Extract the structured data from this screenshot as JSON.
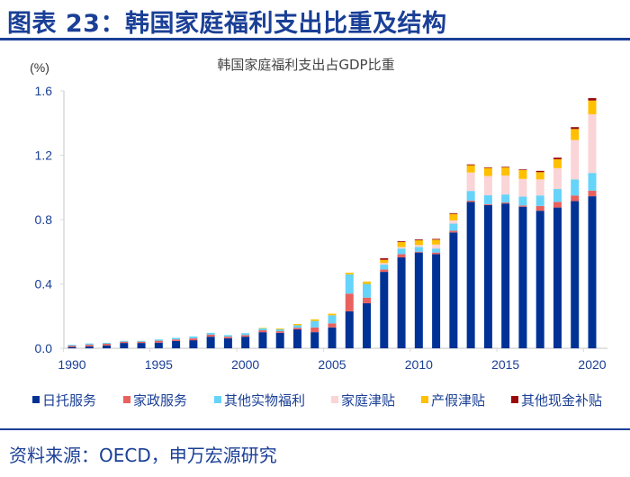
{
  "figure": {
    "title": "图表 23：韩国家庭福利支出比重及结构",
    "source": "资料来源：OECD，申万宏源研究"
  },
  "chart_data": {
    "type": "bar",
    "stacked": true,
    "title": "韩国家庭福利支出占GDP比重",
    "unit_label": "(%)",
    "xlabel": "",
    "ylabel": "(%)",
    "ylim": [
      0,
      1.6
    ],
    "yticks": [
      0.0,
      0.4,
      0.8,
      1.2,
      1.6
    ],
    "ytick_labels": [
      "0.0",
      "0.4",
      "0.8",
      "1.2",
      "1.6"
    ],
    "xtick_labels": [
      "1990",
      "1995",
      "2000",
      "2005",
      "2010",
      "2015",
      "2020"
    ],
    "grid": false,
    "legend_position": "bottom",
    "categories": [
      1990,
      1991,
      1992,
      1993,
      1994,
      1995,
      1996,
      1997,
      1998,
      1999,
      2000,
      2001,
      2002,
      2003,
      2004,
      2005,
      2006,
      2007,
      2008,
      2009,
      2010,
      2011,
      2012,
      2013,
      2014,
      2015,
      2016,
      2017,
      2018,
      2019,
      2020
    ],
    "series": [
      {
        "name": "日托服务",
        "color": "#003296",
        "values": [
          0.008,
          0.012,
          0.018,
          0.033,
          0.033,
          0.035,
          0.045,
          0.05,
          0.072,
          0.062,
          0.072,
          0.1,
          0.096,
          0.118,
          0.1,
          0.13,
          0.23,
          0.28,
          0.475,
          0.565,
          0.595,
          0.585,
          0.72,
          0.91,
          0.89,
          0.9,
          0.88,
          0.855,
          0.875,
          0.915,
          0.945
        ]
      },
      {
        "name": "家政服务",
        "color": "#e8615f",
        "values": [
          0.008,
          0.01,
          0.01,
          0.008,
          0.008,
          0.012,
          0.01,
          0.012,
          0.012,
          0.01,
          0.01,
          0.012,
          0.01,
          0.01,
          0.03,
          0.025,
          0.11,
          0.035,
          0.015,
          0.02,
          0.005,
          0.01,
          0.01,
          0.008,
          0.006,
          0.006,
          0.008,
          0.03,
          0.035,
          0.035,
          0.035
        ]
      },
      {
        "name": "其他实物福利",
        "color": "#66d3fa",
        "values": [
          0.006,
          0.008,
          0.006,
          0.005,
          0.005,
          0.008,
          0.01,
          0.012,
          0.012,
          0.01,
          0.012,
          0.012,
          0.012,
          0.015,
          0.04,
          0.05,
          0.12,
          0.085,
          0.03,
          0.035,
          0.03,
          0.025,
          0.045,
          0.06,
          0.055,
          0.05,
          0.055,
          0.065,
          0.08,
          0.1,
          0.11
        ]
      },
      {
        "name": "家庭津贴",
        "color": "#fad4d6",
        "values": [
          0,
          0,
          0,
          0,
          0,
          0,
          0,
          0,
          0,
          0,
          0,
          0,
          0,
          0,
          0,
          0,
          0,
          0,
          0.01,
          0.01,
          0.012,
          0.025,
          0.02,
          0.115,
          0.12,
          0.118,
          0.11,
          0.1,
          0.13,
          0.245,
          0.365
        ]
      },
      {
        "name": "产假津贴",
        "color": "#ffc000",
        "values": [
          0,
          0,
          0,
          0,
          0,
          0,
          0,
          0,
          0,
          0,
          0,
          0.003,
          0.005,
          0.008,
          0.01,
          0.01,
          0.01,
          0.015,
          0.02,
          0.03,
          0.03,
          0.03,
          0.04,
          0.045,
          0.05,
          0.05,
          0.055,
          0.045,
          0.055,
          0.068,
          0.085
        ]
      },
      {
        "name": "其他现金补贴",
        "color": "#9b0a0a",
        "values": [
          0,
          0,
          0,
          0,
          0,
          0,
          0,
          0,
          0,
          0,
          0,
          0,
          0,
          0,
          0,
          0,
          0,
          0,
          0.01,
          0.005,
          0.005,
          0.005,
          0.005,
          0.005,
          0.004,
          0.004,
          0.004,
          0.008,
          0.01,
          0.012,
          0.015
        ]
      }
    ]
  }
}
